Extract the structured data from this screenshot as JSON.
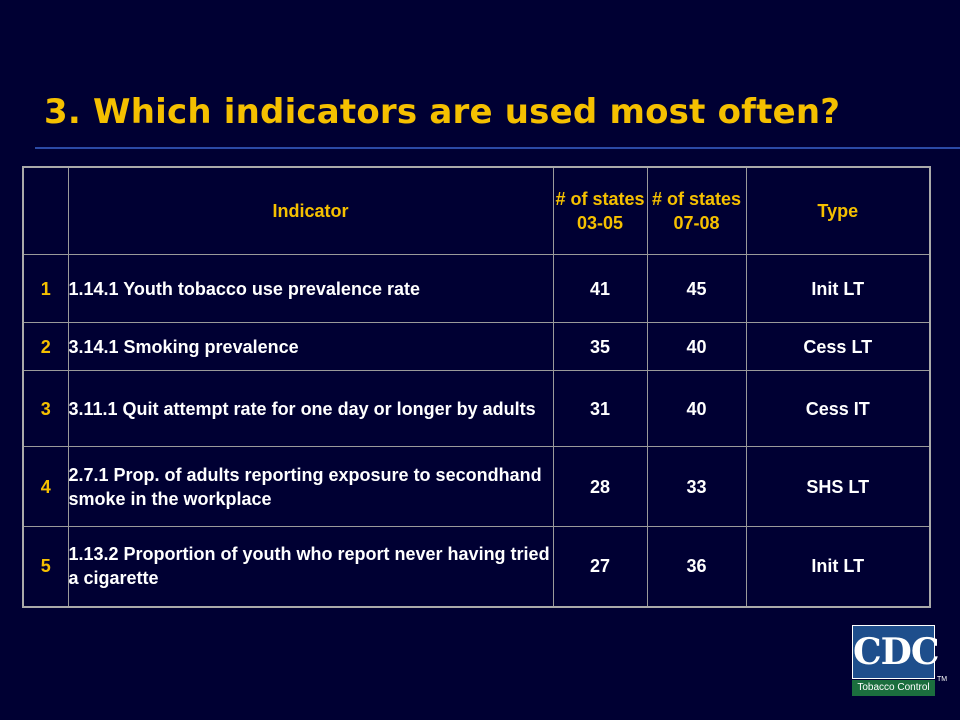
{
  "slide": {
    "title": "3. Which indicators are used most often?"
  },
  "table": {
    "headers": {
      "indicator": "Indicator",
      "states_0305": "# of states 03-05",
      "states_0708": "# of states 07-08",
      "type": "Type"
    },
    "rows": [
      {
        "num": "1",
        "indicator": "1.14.1 Youth tobacco use prevalence rate",
        "s0305": "41",
        "s0708": "45",
        "type": "Init LT"
      },
      {
        "num": "2",
        "indicator": "3.14.1 Smoking prevalence",
        "s0305": "35",
        "s0708": "40",
        "type": "Cess LT"
      },
      {
        "num": "3",
        "indicator": "3.11.1 Quit attempt rate for one day or longer by adults",
        "s0305": "31",
        "s0708": "40",
        "type": "Cess IT"
      },
      {
        "num": "4",
        "indicator": "2.7.1 Prop. of adults reporting exposure to secondhand smoke in the workplace",
        "s0305": "28",
        "s0708": "33",
        "type": "SHS LT"
      },
      {
        "num": "5",
        "indicator": "1.13.2 Proportion of youth who report never having tried a cigarette",
        "s0305": "27",
        "s0708": "36",
        "type": "Init  LT"
      }
    ]
  },
  "logo": {
    "text": "CDC",
    "subtitle": "Tobacco Control",
    "tm": "TM"
  },
  "colors": {
    "background": "#000033",
    "accent": "#f5c000",
    "text": "#ffffff",
    "rule": "#2b4aa6"
  }
}
